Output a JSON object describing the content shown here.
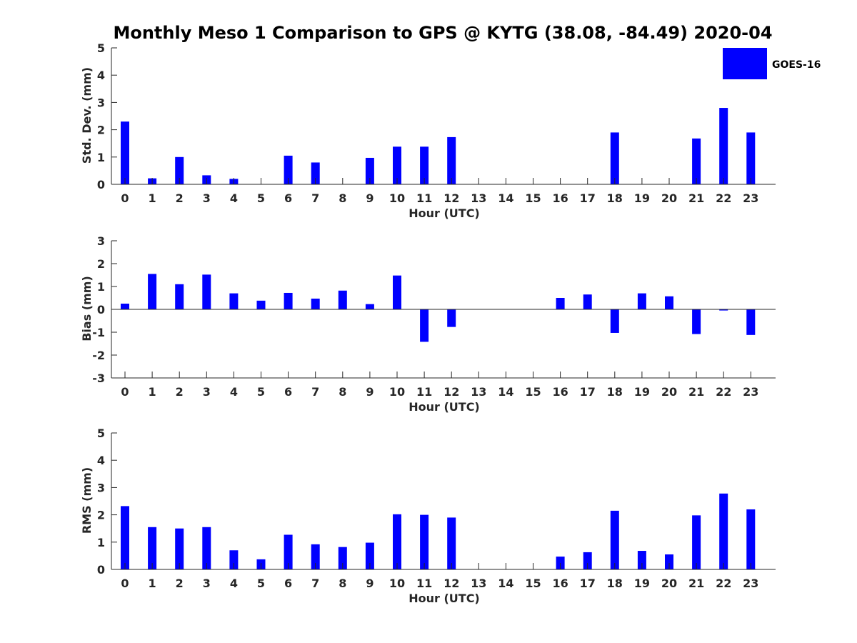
{
  "chart_data": {
    "title": "Monthly Meso 1 Comparison to GPS @ KYTG (38.08, -84.49) 2020-04",
    "legend": {
      "label": "GOES-16",
      "color": "#0000ff",
      "placement": "top-right"
    },
    "categories": [
      "0",
      "1",
      "2",
      "3",
      "4",
      "5",
      "6",
      "7",
      "8",
      "9",
      "10",
      "11",
      "12",
      "13",
      "14",
      "15",
      "16",
      "17",
      "18",
      "19",
      "20",
      "21",
      "22",
      "23"
    ],
    "panels": [
      {
        "type": "bar",
        "xlabel": "Hour (UTC)",
        "ylabel": "Std. Dev. (mm)",
        "ylim": [
          0,
          5
        ],
        "yticks": [
          "0",
          "1",
          "2",
          "3",
          "4",
          "5"
        ],
        "values": [
          2.3,
          0.22,
          1.0,
          0.33,
          0.2,
          0.0,
          1.05,
          0.8,
          0.0,
          0.97,
          1.38,
          1.38,
          1.73,
          0.0,
          0.0,
          0.0,
          0.0,
          0.0,
          1.9,
          0.0,
          0.0,
          1.68,
          2.8,
          1.9
        ]
      },
      {
        "type": "bar",
        "xlabel": "Hour (UTC)",
        "ylabel": "Bias (mm)",
        "ylim": [
          -3,
          3
        ],
        "yticks": [
          "-3",
          "-2",
          "-1",
          "0",
          "1",
          "2",
          "3"
        ],
        "values": [
          0.25,
          1.55,
          1.1,
          1.52,
          0.7,
          0.38,
          0.72,
          0.47,
          0.82,
          0.23,
          1.48,
          -1.42,
          -0.77,
          0.0,
          0.0,
          0.0,
          0.5,
          0.65,
          -1.03,
          0.7,
          0.57,
          -1.08,
          -0.05,
          -1.12
        ]
      },
      {
        "type": "bar",
        "xlabel": "Hour (UTC)",
        "ylabel": "RMS (mm)",
        "ylim": [
          0,
          5
        ],
        "yticks": [
          "0",
          "1",
          "2",
          "3",
          "4",
          "5"
        ],
        "values": [
          2.32,
          1.55,
          1.5,
          1.55,
          0.7,
          0.37,
          1.27,
          0.92,
          0.82,
          0.98,
          2.02,
          2.0,
          1.9,
          0.0,
          0.0,
          0.0,
          0.47,
          0.63,
          2.15,
          0.68,
          0.55,
          1.98,
          2.78,
          2.2
        ]
      }
    ]
  }
}
